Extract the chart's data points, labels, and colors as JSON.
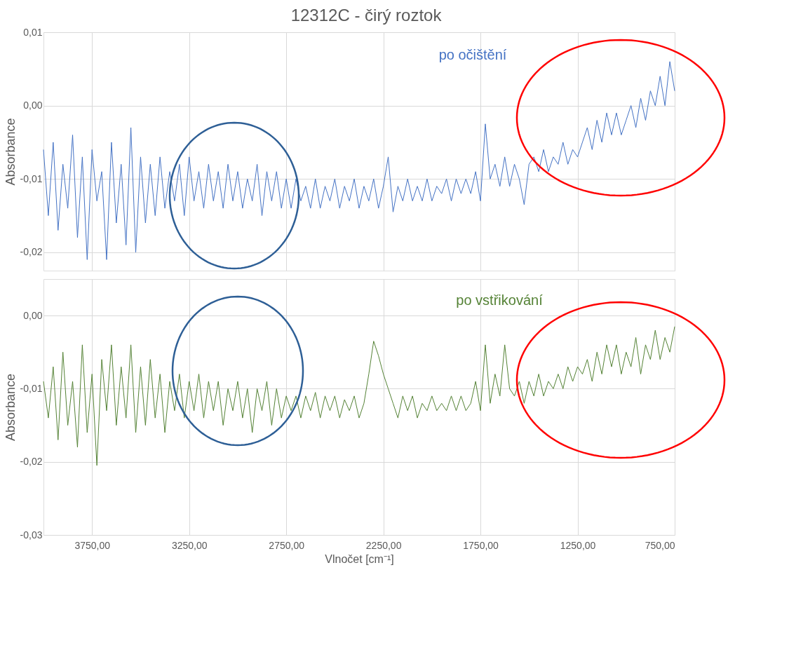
{
  "chart_data": [
    {
      "type": "line",
      "title": "12312C - čirý roztok",
      "ylabel": "Absorbance",
      "tick_labels": "y",
      "grid": true,
      "legend": false,
      "xlim": [
        4000,
        750
      ],
      "xticks": [
        3750,
        3250,
        2750,
        2250,
        1750,
        1250,
        750
      ],
      "ylim": [
        -0.0225,
        0.01
      ],
      "yticks": [
        {
          "value": -0.02,
          "label": "-0,02"
        },
        {
          "value": -0.01,
          "label": "-0,01"
        },
        {
          "value": 0,
          "label": "0,00"
        },
        {
          "value": 0.01,
          "label": "0,01"
        }
      ],
      "x": [
        4000,
        3975,
        3950,
        3925,
        3900,
        3875,
        3850,
        3825,
        3800,
        3775,
        3750,
        3725,
        3700,
        3675,
        3650,
        3625,
        3600,
        3575,
        3550,
        3525,
        3500,
        3475,
        3450,
        3425,
        3400,
        3375,
        3350,
        3325,
        3300,
        3275,
        3250,
        3225,
        3200,
        3175,
        3150,
        3125,
        3100,
        3075,
        3050,
        3025,
        3000,
        2975,
        2950,
        2925,
        2900,
        2875,
        2850,
        2825,
        2800,
        2775,
        2750,
        2725,
        2700,
        2675,
        2650,
        2625,
        2600,
        2575,
        2550,
        2525,
        2500,
        2475,
        2450,
        2425,
        2400,
        2375,
        2350,
        2325,
        2300,
        2275,
        2250,
        2225,
        2200,
        2175,
        2150,
        2125,
        2100,
        2075,
        2050,
        2025,
        2000,
        1975,
        1950,
        1925,
        1900,
        1875,
        1850,
        1825,
        1800,
        1775,
        1750,
        1725,
        1700,
        1675,
        1650,
        1625,
        1600,
        1575,
        1550,
        1525,
        1500,
        1475,
        1450,
        1425,
        1400,
        1375,
        1350,
        1325,
        1300,
        1275,
        1250,
        1225,
        1200,
        1175,
        1150,
        1125,
        1100,
        1075,
        1050,
        1025,
        1000,
        975,
        950,
        925,
        900,
        875,
        850,
        825,
        800,
        775,
        750
      ],
      "series": [
        {
          "name": "po očištění",
          "color": "#4472c4",
          "values": [
            -0.006,
            -0.015,
            -0.005,
            -0.017,
            -0.008,
            -0.014,
            -0.004,
            -0.018,
            -0.007,
            -0.021,
            -0.006,
            -0.013,
            -0.009,
            -0.021,
            -0.005,
            -0.016,
            -0.008,
            -0.019,
            -0.003,
            -0.02,
            -0.007,
            -0.016,
            -0.008,
            -0.015,
            -0.007,
            -0.014,
            -0.009,
            -0.013,
            -0.008,
            -0.015,
            -0.007,
            -0.013,
            -0.009,
            -0.014,
            -0.008,
            -0.013,
            -0.009,
            -0.014,
            -0.008,
            -0.013,
            -0.009,
            -0.014,
            -0.01,
            -0.013,
            -0.008,
            -0.015,
            -0.009,
            -0.013,
            -0.009,
            -0.014,
            -0.01,
            -0.014,
            -0.01,
            -0.013,
            -0.011,
            -0.014,
            -0.01,
            -0.014,
            -0.011,
            -0.013,
            -0.01,
            -0.014,
            -0.011,
            -0.013,
            -0.01,
            -0.014,
            -0.011,
            -0.013,
            -0.01,
            -0.014,
            -0.011,
            -0.007,
            -0.0145,
            -0.011,
            -0.013,
            -0.01,
            -0.013,
            -0.011,
            -0.013,
            -0.01,
            -0.013,
            -0.011,
            -0.012,
            -0.01,
            -0.013,
            -0.01,
            -0.012,
            -0.01,
            -0.012,
            -0.009,
            -0.013,
            -0.0025,
            -0.01,
            -0.008,
            -0.011,
            -0.007,
            -0.011,
            -0.008,
            -0.01,
            -0.0135,
            -0.008,
            -0.007,
            -0.009,
            -0.006,
            -0.009,
            -0.007,
            -0.008,
            -0.005,
            -0.008,
            -0.006,
            -0.007,
            -0.005,
            -0.003,
            -0.006,
            -0.002,
            -0.005,
            -0.001,
            -0.004,
            -0.001,
            -0.004,
            -0.002,
            0.0,
            -0.003,
            0.001,
            -0.002,
            0.002,
            0.0,
            0.004,
            0.0,
            0.006,
            0.002
          ]
        }
      ]
    },
    {
      "type": "line",
      "xlabel": "Vlnočet [cm⁻¹]",
      "ylabel": "Absorbance",
      "grid": true,
      "legend": false,
      "xlim": [
        4000,
        750
      ],
      "xticks": [
        {
          "value": 3750,
          "label": "3750,00"
        },
        {
          "value": 3250,
          "label": "3250,00"
        },
        {
          "value": 2750,
          "label": "2750,00"
        },
        {
          "value": 2250,
          "label": "2250,00"
        },
        {
          "value": 1750,
          "label": "1750,00"
        },
        {
          "value": 1250,
          "label": "1250,00"
        },
        {
          "value": 750,
          "label": "750,00"
        }
      ],
      "ylim": [
        -0.03,
        0.005
      ],
      "yticks": [
        {
          "value": -0.03,
          "label": "-0,03"
        },
        {
          "value": -0.02,
          "label": "-0,02"
        },
        {
          "value": -0.01,
          "label": "-0,01"
        },
        {
          "value": 0,
          "label": "0,00"
        }
      ],
      "x": [
        4000,
        3975,
        3950,
        3925,
        3900,
        3875,
        3850,
        3825,
        3800,
        3775,
        3750,
        3725,
        3700,
        3675,
        3650,
        3625,
        3600,
        3575,
        3550,
        3525,
        3500,
        3475,
        3450,
        3425,
        3400,
        3375,
        3350,
        3325,
        3300,
        3275,
        3250,
        3225,
        3200,
        3175,
        3150,
        3125,
        3100,
        3075,
        3050,
        3025,
        3000,
        2975,
        2950,
        2925,
        2900,
        2875,
        2850,
        2825,
        2800,
        2775,
        2750,
        2725,
        2700,
        2675,
        2650,
        2625,
        2600,
        2575,
        2550,
        2525,
        2500,
        2475,
        2450,
        2425,
        2400,
        2375,
        2350,
        2325,
        2300,
        2275,
        2250,
        2225,
        2200,
        2175,
        2150,
        2125,
        2100,
        2075,
        2050,
        2025,
        2000,
        1975,
        1950,
        1925,
        1900,
        1875,
        1850,
        1825,
        1800,
        1775,
        1750,
        1725,
        1700,
        1675,
        1650,
        1625,
        1600,
        1575,
        1550,
        1525,
        1500,
        1475,
        1450,
        1425,
        1400,
        1375,
        1350,
        1325,
        1300,
        1275,
        1250,
        1225,
        1200,
        1175,
        1150,
        1125,
        1100,
        1075,
        1050,
        1025,
        1000,
        975,
        950,
        925,
        900,
        875,
        850,
        825,
        800,
        775,
        750
      ],
      "series": [
        {
          "name": "po vstřikování",
          "color": "#548235",
          "values": [
            -0.009,
            -0.014,
            -0.007,
            -0.017,
            -0.005,
            -0.015,
            -0.009,
            -0.018,
            -0.004,
            -0.016,
            -0.008,
            -0.0205,
            -0.006,
            -0.013,
            -0.004,
            -0.015,
            -0.007,
            -0.014,
            -0.004,
            -0.016,
            -0.007,
            -0.015,
            -0.006,
            -0.014,
            -0.008,
            -0.016,
            -0.009,
            -0.013,
            -0.008,
            -0.014,
            -0.009,
            -0.013,
            -0.008,
            -0.014,
            -0.009,
            -0.013,
            -0.009,
            -0.015,
            -0.01,
            -0.013,
            -0.009,
            -0.014,
            -0.01,
            -0.016,
            -0.01,
            -0.013,
            -0.009,
            -0.015,
            -0.01,
            -0.014,
            -0.011,
            -0.013,
            -0.011,
            -0.014,
            -0.011,
            -0.013,
            -0.0105,
            -0.014,
            -0.011,
            -0.013,
            -0.011,
            -0.014,
            -0.0115,
            -0.013,
            -0.011,
            -0.014,
            -0.012,
            -0.008,
            -0.0035,
            -0.0055,
            -0.008,
            -0.01,
            -0.012,
            -0.014,
            -0.011,
            -0.013,
            -0.011,
            -0.014,
            -0.012,
            -0.013,
            -0.011,
            -0.013,
            -0.012,
            -0.013,
            -0.011,
            -0.013,
            -0.011,
            -0.013,
            -0.012,
            -0.009,
            -0.013,
            -0.004,
            -0.012,
            -0.008,
            -0.011,
            -0.004,
            -0.01,
            -0.011,
            -0.009,
            -0.012,
            -0.009,
            -0.011,
            -0.008,
            -0.011,
            -0.009,
            -0.01,
            -0.008,
            -0.01,
            -0.007,
            -0.009,
            -0.007,
            -0.008,
            -0.006,
            -0.009,
            -0.005,
            -0.008,
            -0.004,
            -0.007,
            -0.004,
            -0.008,
            -0.005,
            -0.007,
            -0.003,
            -0.008,
            -0.004,
            -0.006,
            -0.002,
            -0.006,
            -0.003,
            -0.005,
            -0.0015
          ]
        }
      ]
    }
  ]
}
